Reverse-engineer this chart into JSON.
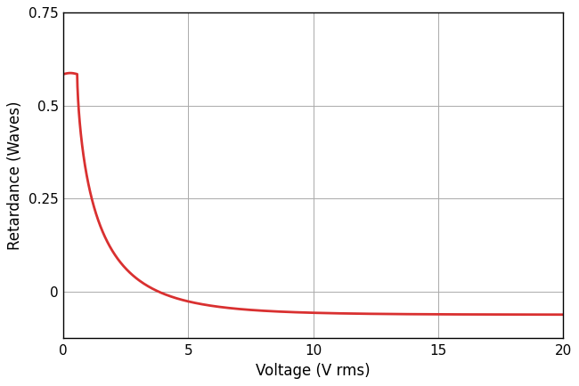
{
  "title": "",
  "xlabel": "Voltage (V rms)",
  "ylabel": "Retardance (Waves)",
  "xlim": [
    0,
    20
  ],
  "ylim": [
    -0.125,
    0.75
  ],
  "xticks": [
    0,
    5,
    10,
    15,
    20
  ],
  "yticks": [
    0.0,
    0.25,
    0.5,
    0.75
  ],
  "line_color": "#d93030",
  "line_width": 2.0,
  "background_color": "#ffffff",
  "grid_color": "#aaaaaa",
  "grid_linewidth": 0.7,
  "spine_color": "#000000",
  "xlabel_fontsize": 12,
  "ylabel_fontsize": 12,
  "tick_labelsize": 11,
  "curve": {
    "v_flat_end": 0.55,
    "r_flat": 0.585,
    "r_min": -0.062,
    "v_th": 0.55,
    "k": 1.05,
    "alpha": 0.68
  }
}
